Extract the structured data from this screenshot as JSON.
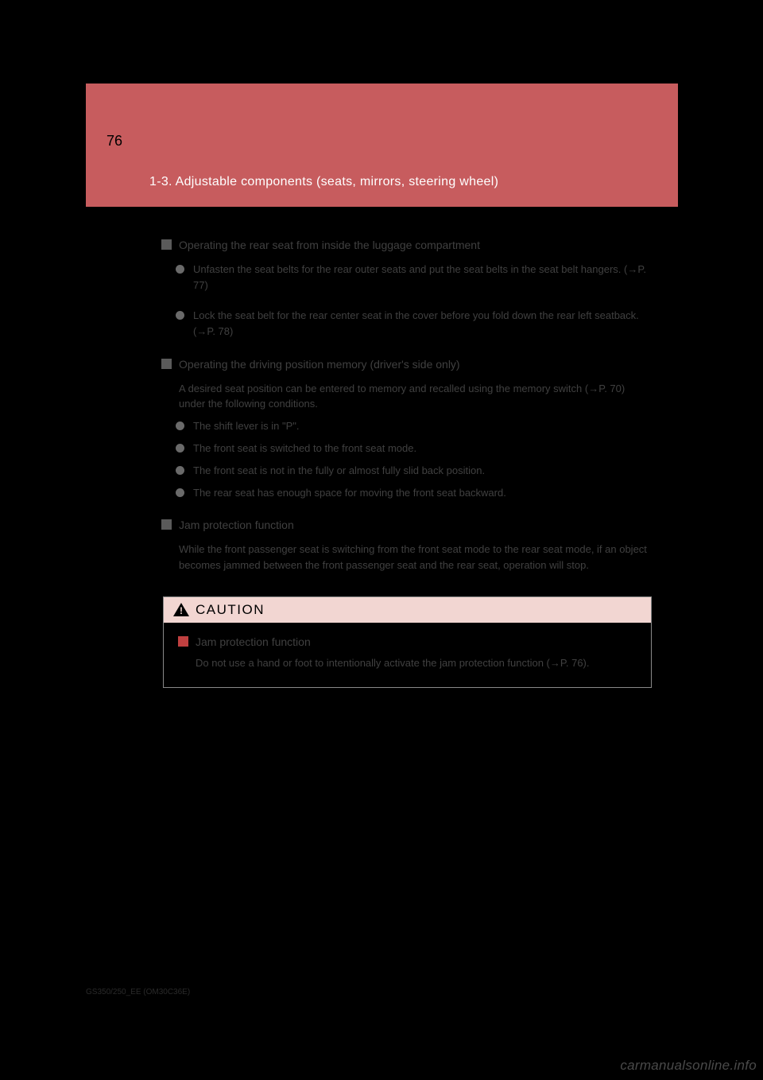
{
  "header": {
    "page_number": "76",
    "section_title": "1-3. Adjustable components (seats, mirrors, steering wheel)",
    "background_color": "#c75c5e",
    "title_color": "#ffffff"
  },
  "sections": [
    {
      "heading": "Operating the rear seat from inside the luggage compartment",
      "items": [
        {
          "text": "Unfasten the seat belts for the rear outer seats and put the seat belts in the seat belt hangers. (→P. 77)",
          "spaced": true
        },
        {
          "text": "Lock the seat belt for the rear center seat in the cover before you fold down the rear left seatback. (→P. 78)",
          "spaced": false
        }
      ]
    },
    {
      "heading": "Operating the driving position memory (driver's side only)",
      "subtext": "A desired seat position can be entered to memory and recalled using the memory switch (→P. 70) under the following conditions.",
      "items": [
        {
          "text": "The shift lever is in \"P\".",
          "spaced": false
        },
        {
          "text": "The front seat is switched to the front seat mode.",
          "spaced": false
        },
        {
          "text": "The front seat is not in the fully or almost fully slid back position.",
          "spaced": false
        },
        {
          "text": "The rear seat has enough space for moving the front seat backward.",
          "spaced": false
        }
      ]
    },
    {
      "heading": "Jam protection function",
      "plaintext": "While the front passenger seat is switching from the front seat mode to the rear seat mode, if an object becomes jammed between the front passenger seat and the rear seat, operation will stop.",
      "items": []
    }
  ],
  "caution": {
    "title": "CAUTION",
    "heading": "Jam protection function",
    "body": "Do not use a hand or foot to intentionally activate the jam protection function (→P. 76).",
    "header_bg": "#f2d6d2",
    "marker_color": "#c04040"
  },
  "watermark": "carmanualsonline.info",
  "doc_id": "GS350/250_EE (OM30C36E)",
  "colors": {
    "page_bg": "#000000",
    "body_text": "#404040",
    "section_marker": "#5a5a5a",
    "bullet_marker": "#6a6a6a"
  }
}
